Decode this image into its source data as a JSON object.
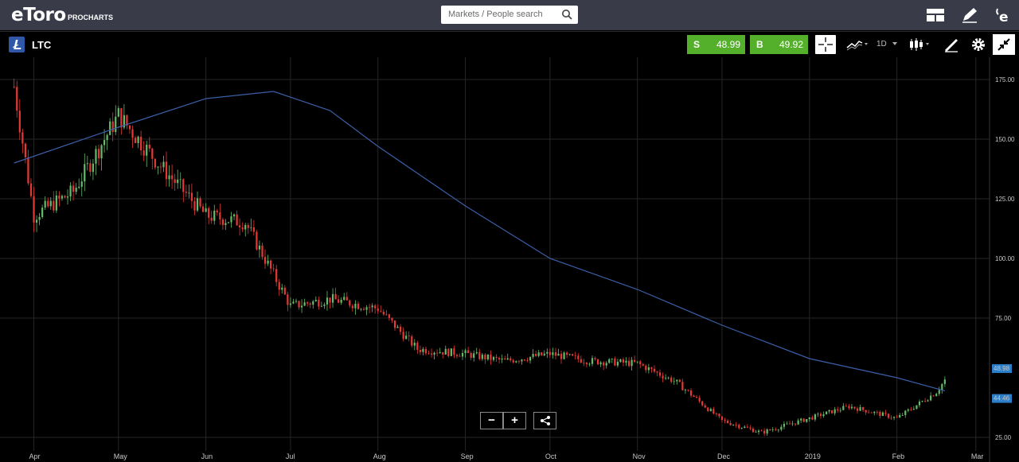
{
  "header": {
    "logo_text": "eToro",
    "logo_sub": "PROCHARTS",
    "search_placeholder": "Markets / People search",
    "icons": [
      "layout-icon",
      "pencil-icon",
      "etoro-e-icon"
    ]
  },
  "toolbar": {
    "asset": "LTC",
    "sell": {
      "label": "S",
      "value": "48.99"
    },
    "buy": {
      "label": "B",
      "value": "49.92"
    },
    "interval": "1D",
    "colors": {
      "quote_green": "#54b02b",
      "up": "#66bb6a",
      "down": "#e53935",
      "ma": "#3b5fa8",
      "asset_blue": "#2f59a8"
    }
  },
  "chart": {
    "y_ticks": [
      "175.00",
      "150.00",
      "125.00",
      "100.00",
      "75.00",
      "25.00"
    ],
    "x_ticks": [
      "Apr",
      "May",
      "Jun",
      "Jul",
      "Aug",
      "Sep",
      "Oct",
      "Nov",
      "Dec",
      "2019",
      "Feb",
      "Mar"
    ],
    "price_tag": "48.98",
    "ma_tag": "44.46"
  },
  "chart_data": {
    "type": "candlestick",
    "ylim": [
      22,
      185
    ],
    "x": [
      "2018-03-25",
      "2018-04-01",
      "2018-04-15",
      "2018-05-01",
      "2018-05-15",
      "2018-06-01",
      "2018-06-15",
      "2018-07-01",
      "2018-07-15",
      "2018-08-01",
      "2018-08-15",
      "2018-09-01",
      "2018-09-15",
      "2018-10-01",
      "2018-10-15",
      "2018-11-01",
      "2018-11-15",
      "2018-12-01",
      "2018-12-15",
      "2019-01-01",
      "2019-01-15",
      "2019-02-01",
      "2019-02-15",
      "2019-02-18"
    ],
    "close": [
      172,
      118,
      128,
      160,
      140,
      118,
      115,
      80,
      83,
      79,
      62,
      60,
      57,
      60,
      57,
      56,
      48,
      32,
      27,
      33,
      38,
      33,
      44,
      49
    ],
    "ma_line": {
      "x": [
        "2018-03-25",
        "2018-05-01",
        "2018-06-01",
        "2018-06-25",
        "2018-07-15",
        "2018-08-01",
        "2018-09-01",
        "2018-10-01",
        "2018-11-01",
        "2018-12-01",
        "2019-01-01",
        "2019-02-01",
        "2019-02-18"
      ],
      "values": [
        140,
        155,
        167,
        170,
        162,
        147,
        122,
        100,
        87,
        72,
        58,
        50,
        44.46
      ]
    },
    "xlabel": "",
    "ylabel": ""
  },
  "controls": {
    "zoom_out": "−",
    "zoom_in": "+",
    "share_icon": "share-icon"
  }
}
